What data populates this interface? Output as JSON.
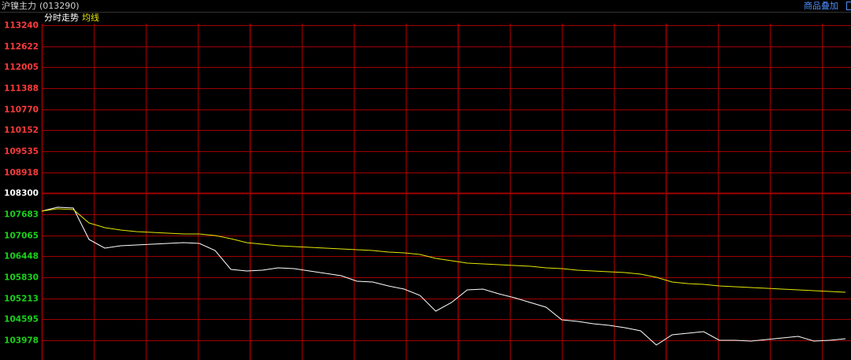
{
  "chart_data": {
    "type": "line",
    "title": "沪镍主力",
    "code": "(013290)",
    "button": "商品叠加",
    "reference": 108300,
    "up_color": "#ff3b3b",
    "down_color": "#19d219",
    "reference_color": "#ffffff",
    "grid_color": "#a00000",
    "grid": true,
    "ylim": [
      103400,
      113240
    ],
    "yticks": [
      113240,
      112622,
      112005,
      111388,
      110770,
      110152,
      109535,
      108918,
      108300,
      107683,
      107065,
      106448,
      105830,
      105213,
      104595,
      103978
    ],
    "series": [
      {
        "name": "分时走势",
        "color": "#ffffff",
        "values": [
          107776,
          107892,
          107869,
          106942,
          106688,
          106757,
          106780,
          106803,
          106827,
          106850,
          106827,
          106618,
          106063,
          106016,
          106039,
          106109,
          106086,
          106016,
          105947,
          105877,
          105715,
          105692,
          105576,
          105484,
          105299,
          104835,
          105090,
          105461,
          105484,
          105345,
          105229,
          105090,
          104951,
          104581,
          104534,
          104465,
          104419,
          104349,
          104257,
          103840,
          104141,
          104187,
          104234,
          103979,
          103979,
          103956,
          104002,
          104048,
          104095,
          103956,
          103979,
          104025
        ]
      },
      {
        "name": "均线",
        "color": "#e6e600",
        "values": [
          107776,
          107845,
          107822,
          107429,
          107290,
          107220,
          107174,
          107151,
          107128,
          107104,
          107104,
          107058,
          106966,
          106850,
          106803,
          106757,
          106734,
          106711,
          106688,
          106665,
          106641,
          106618,
          106572,
          106549,
          106503,
          106387,
          106317,
          106248,
          106225,
          106202,
          106178,
          106155,
          106109,
          106086,
          106039,
          106016,
          105993,
          105970,
          105924,
          105831,
          105692,
          105646,
          105623,
          105576,
          105553,
          105530,
          105507,
          105484,
          105461,
          105437,
          105414,
          105391
        ]
      }
    ]
  }
}
